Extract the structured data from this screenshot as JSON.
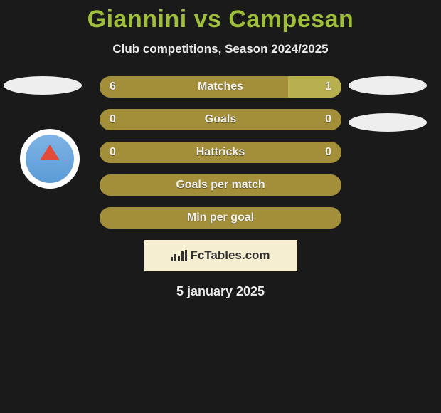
{
  "title": "Giannini vs Campesan",
  "subtitle": "Club competitions, Season 2024/2025",
  "date": "5 january 2025",
  "fctables_label": "FcTables.com",
  "colors": {
    "background": "#1a1a1a",
    "title": "#9fbf3b",
    "text_light": "#eaeaea",
    "bar_base": "#a38f3a",
    "bar_fill": "#b8b04f",
    "box_bg": "#f5eed0",
    "box_text": "#333333",
    "oval_bg": "#eeeeee",
    "badge_white": "#ffffff",
    "badge_gradient_top": "#7fb4e6",
    "badge_gradient_bottom": "#5a9bd6",
    "badge_accent": "#e24b3a"
  },
  "stat_rows": [
    {
      "label": "Matches",
      "left": "6",
      "right": "1",
      "fill_right_pct": 22,
      "show_vals": true
    },
    {
      "label": "Goals",
      "left": "0",
      "right": "0",
      "fill_right_pct": 0,
      "show_vals": true
    },
    {
      "label": "Hattricks",
      "left": "0",
      "right": "0",
      "fill_right_pct": 0,
      "show_vals": true
    },
    {
      "label": "Goals per match",
      "left": "",
      "right": "",
      "fill_right_pct": 0,
      "show_vals": false
    },
    {
      "label": "Min per goal",
      "left": "",
      "right": "",
      "fill_right_pct": 0,
      "show_vals": false
    }
  ],
  "fc_icon_bars": [
    6,
    10,
    8,
    14,
    16
  ]
}
